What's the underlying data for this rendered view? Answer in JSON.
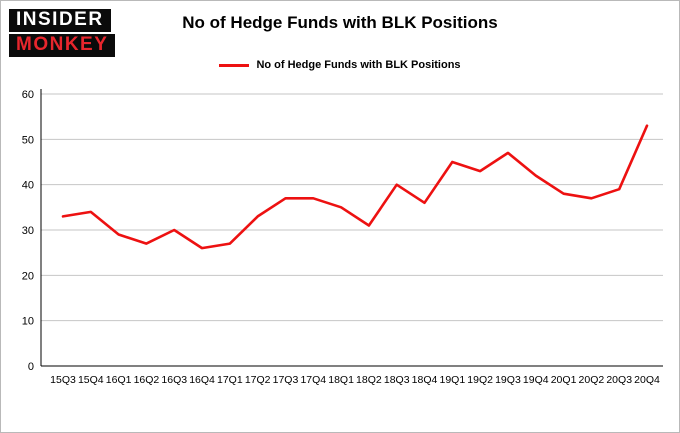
{
  "logo": {
    "line1": "INSIDER",
    "line2": "MONKEY",
    "bg_color": "#0b0b0b",
    "line1_color": "#ffffff",
    "line2_color": "#e8262d"
  },
  "header": {
    "title": "No of Hedge Funds with BLK Positions"
  },
  "legend": {
    "label": "No of Hedge Funds with BLK Positions"
  },
  "chart_data": {
    "type": "line",
    "title": "No of Hedge Funds with BLK Positions",
    "categories": [
      "15Q3",
      "15Q4",
      "16Q1",
      "16Q2",
      "16Q3",
      "16Q4",
      "17Q1",
      "17Q2",
      "17Q3",
      "17Q4",
      "18Q1",
      "18Q2",
      "18Q3",
      "18Q4",
      "19Q1",
      "19Q2",
      "19Q3",
      "19Q4",
      "20Q1",
      "20Q2",
      "20Q3",
      "20Q4"
    ],
    "series": [
      {
        "name": "No of Hedge Funds with BLK Positions",
        "color": "#ed1111",
        "values": [
          33,
          34,
          29,
          27,
          30,
          26,
          27,
          33,
          37,
          37,
          35,
          31,
          40,
          36,
          45,
          43,
          47,
          42,
          38,
          37,
          39,
          53
        ]
      }
    ],
    "xlabel": "",
    "ylabel": "",
    "ylim": [
      0,
      60
    ],
    "yticks": [
      0,
      10,
      20,
      30,
      40,
      50,
      60
    ],
    "grid": true,
    "grid_color": "#c6c6c6",
    "axis_color": "#000000",
    "legend_position": "top"
  }
}
